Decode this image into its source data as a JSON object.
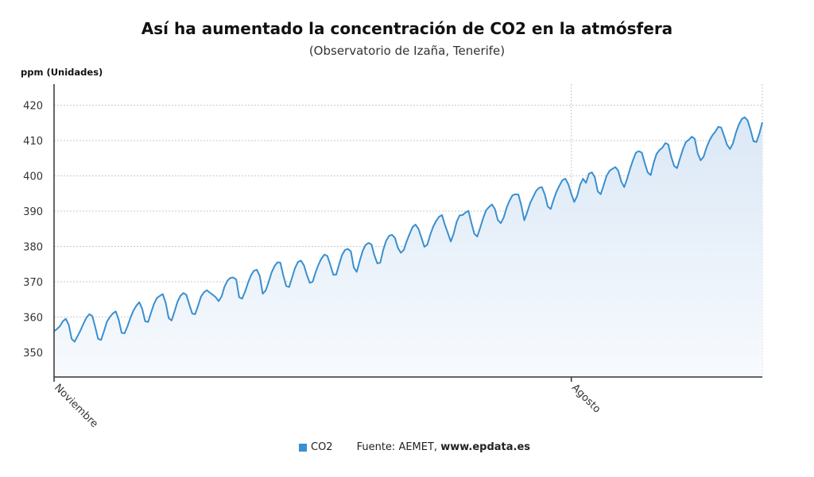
{
  "chart_data": {
    "type": "line",
    "title": "Así ha aumentado la concentración de CO2 en la atmósfera",
    "subtitle": "(Observatorio de Izaña, Tenerife)",
    "ylabel": "ppm (Unidades)",
    "xlabel": "",
    "ylim": [
      343,
      426
    ],
    "yticks": [
      350,
      360,
      370,
      380,
      390,
      400,
      410,
      420
    ],
    "x_ticks": [
      {
        "label": "Noviembre",
        "x": 0
      },
      {
        "label": "Agosto",
        "x": 176
      }
    ],
    "grid": true,
    "legend_position": "bottom",
    "colors": {
      "line": "#3a8fcf",
      "fill_top": "#dbe8f6",
      "fill_bottom": "#f7fafd",
      "grid": "#c8c8c8",
      "axis": "#333333"
    },
    "series": [
      {
        "name": "CO2",
        "x_start": 0,
        "x_step": 1,
        "values": [
          356.0,
          356.6,
          357.4,
          358.8,
          359.5,
          357.8,
          353.8,
          353.0,
          354.6,
          356.2,
          358.1,
          359.8,
          360.8,
          360.3,
          357.2,
          353.8,
          353.5,
          356.0,
          358.7,
          360.0,
          361.0,
          361.6,
          359.2,
          355.5,
          355.4,
          357.4,
          359.8,
          361.8,
          363.2,
          364.2,
          362.3,
          358.8,
          358.6,
          361.2,
          363.7,
          365.4,
          366.0,
          366.5,
          364.0,
          359.7,
          359.0,
          361.6,
          364.3,
          366.0,
          366.8,
          366.3,
          363.6,
          361.0,
          360.8,
          363.2,
          365.8,
          367.0,
          367.6,
          366.9,
          366.3,
          365.6,
          364.5,
          365.8,
          368.6,
          370.3,
          371.1,
          371.2,
          370.6,
          365.6,
          365.2,
          367.2,
          369.7,
          371.8,
          373.1,
          373.4,
          371.6,
          366.6,
          367.5,
          369.9,
          372.6,
          374.4,
          375.5,
          375.4,
          371.8,
          368.8,
          368.5,
          371.2,
          373.9,
          375.6,
          376.0,
          374.7,
          372.0,
          369.7,
          370.0,
          372.7,
          374.9,
          376.6,
          377.7,
          377.3,
          374.8,
          372.0,
          372.0,
          374.9,
          377.6,
          379.0,
          379.3,
          378.6,
          374.0,
          372.8,
          375.9,
          378.7,
          380.4,
          381.0,
          380.6,
          377.5,
          375.2,
          375.4,
          379.0,
          381.6,
          383.0,
          383.3,
          382.4,
          379.6,
          378.2,
          379.0,
          381.5,
          383.6,
          385.5,
          386.2,
          385.0,
          382.5,
          379.9,
          380.5,
          383.3,
          385.6,
          387.2,
          388.4,
          388.9,
          386.1,
          383.8,
          381.4,
          383.7,
          387.0,
          388.8,
          388.9,
          389.6,
          390.1,
          386.7,
          383.6,
          382.8,
          385.3,
          388.0,
          390.2,
          391.2,
          391.9,
          390.6,
          387.5,
          386.6,
          388.2,
          391.0,
          393.0,
          394.5,
          394.8,
          394.7,
          391.6,
          387.4,
          389.7,
          392.3,
          394.0,
          395.7,
          396.6,
          396.8,
          394.7,
          391.3,
          390.6,
          393.3,
          395.6,
          397.3,
          398.8,
          399.2,
          397.6,
          394.9,
          392.6,
          394.3,
          397.5,
          399.2,
          398.0,
          400.6,
          401.0,
          399.6,
          395.6,
          394.8,
          397.3,
          400.0,
          401.4,
          402.0,
          402.5,
          401.4,
          398.4,
          396.8,
          399.2,
          402.0,
          404.5,
          406.6,
          407.0,
          406.6,
          403.6,
          401.0,
          400.2,
          403.6,
          406.2,
          407.3,
          408.0,
          409.3,
          408.9,
          405.4,
          402.8,
          402.2,
          405.0,
          407.6,
          409.6,
          410.2,
          411.1,
          410.5,
          406.4,
          404.4,
          405.4,
          408.0,
          410.0,
          411.5,
          412.5,
          413.9,
          413.7,
          411.3,
          408.8,
          407.6,
          409.2,
          412.2,
          414.5,
          416.1,
          416.6,
          415.7,
          413.0,
          409.8,
          409.6,
          412.0,
          415.2
        ]
      }
    ],
    "source": {
      "prefix": "Fuente: AEMET, ",
      "site": "www.epdata.es"
    }
  }
}
